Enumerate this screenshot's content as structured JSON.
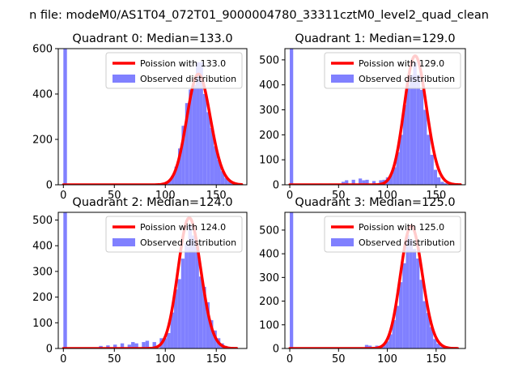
{
  "figure_title": "n file: modeM0/AS1T04_072T01_9000004780_33311cztM0_level2_quad_clean",
  "colors": {
    "histogram": "#8080ff",
    "poisson": "#ff0000",
    "axes": "#000000",
    "legend_border": "#cccccc"
  },
  "chart_data": [
    {
      "type": "bar",
      "title": "Quadrant 0: Median=133.0",
      "xlim": [
        -5,
        180
      ],
      "ylim": [
        0,
        600
      ],
      "xticks": [
        0,
        50,
        100,
        150
      ],
      "yticks": [
        0,
        200,
        400,
        600
      ],
      "bin_width": 3.5,
      "legend": {
        "placement": "top-right",
        "entries": [
          "Poission with 133.0",
          "Observed distribution"
        ]
      },
      "series": [
        {
          "name": "Observed distribution",
          "kind": "histogram",
          "bins": [
            {
              "x": 0,
              "y": 600
            },
            {
              "x": 80,
              "y": 4
            },
            {
              "x": 84,
              "y": 2
            },
            {
              "x": 91,
              "y": 2
            },
            {
              "x": 95,
              "y": 4
            },
            {
              "x": 98.5,
              "y": 8
            },
            {
              "x": 102,
              "y": 18
            },
            {
              "x": 105.5,
              "y": 40
            },
            {
              "x": 109,
              "y": 80
            },
            {
              "x": 112.5,
              "y": 160
            },
            {
              "x": 116,
              "y": 260
            },
            {
              "x": 119.5,
              "y": 360
            },
            {
              "x": 123,
              "y": 420
            },
            {
              "x": 126.5,
              "y": 440
            },
            {
              "x": 130,
              "y": 540
            },
            {
              "x": 133.5,
              "y": 540
            },
            {
              "x": 137,
              "y": 400
            },
            {
              "x": 140.5,
              "y": 320
            },
            {
              "x": 144,
              "y": 250
            },
            {
              "x": 147.5,
              "y": 170
            },
            {
              "x": 151,
              "y": 110
            },
            {
              "x": 154.5,
              "y": 60
            },
            {
              "x": 158,
              "y": 30
            },
            {
              "x": 161.5,
              "y": 14
            },
            {
              "x": 165,
              "y": 6
            },
            {
              "x": 168.5,
              "y": 2
            }
          ]
        },
        {
          "name": "Poission with 133.0",
          "kind": "poisson_curve",
          "lambda": 133.0,
          "scale": 14100,
          "x_range": [
            0,
            175
          ]
        }
      ]
    },
    {
      "type": "bar",
      "title": "Quadrant 1: Median=129.0",
      "xlim": [
        -5,
        180
      ],
      "ylim": [
        0,
        545
      ],
      "xticks": [
        0,
        50,
        100,
        150
      ],
      "yticks": [
        0,
        100,
        200,
        300,
        400,
        500
      ],
      "bin_width": 3.5,
      "legend": {
        "placement": "top-right",
        "entries": [
          "Poission with 129.0",
          "Observed distribution"
        ]
      },
      "series": [
        {
          "name": "Observed distribution",
          "kind": "histogram",
          "bins": [
            {
              "x": 0,
              "y": 545
            },
            {
              "x": 10,
              "y": 4
            },
            {
              "x": 20,
              "y": 3
            },
            {
              "x": 30,
              "y": 5
            },
            {
              "x": 40,
              "y": 5
            },
            {
              "x": 53,
              "y": 12
            },
            {
              "x": 56.5,
              "y": 18
            },
            {
              "x": 63.5,
              "y": 20
            },
            {
              "x": 70.5,
              "y": 25
            },
            {
              "x": 74,
              "y": 18
            },
            {
              "x": 77.5,
              "y": 20
            },
            {
              "x": 84.5,
              "y": 15
            },
            {
              "x": 91.5,
              "y": 18
            },
            {
              "x": 95,
              "y": 20
            },
            {
              "x": 98.5,
              "y": 30
            },
            {
              "x": 102,
              "y": 40
            },
            {
              "x": 105.5,
              "y": 70
            },
            {
              "x": 109,
              "y": 130
            },
            {
              "x": 112.5,
              "y": 200
            },
            {
              "x": 116,
              "y": 320
            },
            {
              "x": 119.5,
              "y": 400
            },
            {
              "x": 123,
              "y": 440
            },
            {
              "x": 126.5,
              "y": 490
            },
            {
              "x": 130,
              "y": 440
            },
            {
              "x": 133.5,
              "y": 380
            },
            {
              "x": 137,
              "y": 300
            },
            {
              "x": 140.5,
              "y": 200
            },
            {
              "x": 144,
              "y": 120
            },
            {
              "x": 147.5,
              "y": 60
            },
            {
              "x": 151,
              "y": 30
            },
            {
              "x": 154.5,
              "y": 12
            },
            {
              "x": 158,
              "y": 6
            }
          ]
        },
        {
          "name": "Poission with 129.0",
          "kind": "poisson_curve",
          "lambda": 129.0,
          "scale": 14700,
          "x_range": [
            0,
            175
          ]
        }
      ]
    },
    {
      "type": "bar",
      "title": "Quadrant 2: Median=124.0",
      "xlim": [
        -5,
        180
      ],
      "ylim": [
        0,
        530
      ],
      "xticks": [
        0,
        50,
        100,
        150
      ],
      "yticks": [
        0,
        100,
        200,
        300,
        400,
        500
      ],
      "bin_width": 3.5,
      "legend": {
        "placement": "top-right",
        "entries": [
          "Poission with 124.0",
          "Observed distribution"
        ]
      },
      "series": [
        {
          "name": "Observed distribution",
          "kind": "histogram",
          "bins": [
            {
              "x": 0,
              "y": 530
            },
            {
              "x": 35,
              "y": 10
            },
            {
              "x": 42,
              "y": 12
            },
            {
              "x": 49,
              "y": 15
            },
            {
              "x": 56,
              "y": 20
            },
            {
              "x": 63,
              "y": 15
            },
            {
              "x": 66.5,
              "y": 25
            },
            {
              "x": 70,
              "y": 20
            },
            {
              "x": 77,
              "y": 25
            },
            {
              "x": 80.5,
              "y": 30
            },
            {
              "x": 87.5,
              "y": 25
            },
            {
              "x": 94.5,
              "y": 40
            },
            {
              "x": 98,
              "y": 40
            },
            {
              "x": 101.5,
              "y": 60
            },
            {
              "x": 105,
              "y": 140
            },
            {
              "x": 108.5,
              "y": 230
            },
            {
              "x": 112,
              "y": 270
            },
            {
              "x": 115.5,
              "y": 350
            },
            {
              "x": 119,
              "y": 410
            },
            {
              "x": 122.5,
              "y": 480
            },
            {
              "x": 126,
              "y": 440
            },
            {
              "x": 129.5,
              "y": 400
            },
            {
              "x": 133,
              "y": 280
            },
            {
              "x": 136.5,
              "y": 240
            },
            {
              "x": 140,
              "y": 180
            },
            {
              "x": 143.5,
              "y": 110
            },
            {
              "x": 147,
              "y": 70
            },
            {
              "x": 150.5,
              "y": 40
            },
            {
              "x": 154,
              "y": 20
            },
            {
              "x": 157.5,
              "y": 10
            },
            {
              "x": 161,
              "y": 5
            }
          ]
        },
        {
          "name": "Poission with 124.0",
          "kind": "poisson_curve",
          "lambda": 124.0,
          "scale": 14200,
          "x_range": [
            0,
            170
          ]
        }
      ]
    },
    {
      "type": "bar",
      "title": "Quadrant 3: Median=125.0",
      "xlim": [
        -5,
        180
      ],
      "ylim": [
        0,
        575
      ],
      "xticks": [
        0,
        50,
        100,
        150
      ],
      "yticks": [
        0,
        100,
        200,
        300,
        400,
        500
      ],
      "bin_width": 3.5,
      "legend": {
        "placement": "top-right",
        "entries": [
          "Poission with 125.0",
          "Observed distribution"
        ]
      },
      "series": [
        {
          "name": "Observed distribution",
          "kind": "histogram",
          "bins": [
            {
              "x": 0,
              "y": 575
            },
            {
              "x": 60,
              "y": 3
            },
            {
              "x": 70,
              "y": 5
            },
            {
              "x": 77,
              "y": 15
            },
            {
              "x": 80.5,
              "y": 12
            },
            {
              "x": 87.5,
              "y": 12
            },
            {
              "x": 94.5,
              "y": 15
            },
            {
              "x": 98,
              "y": 30
            },
            {
              "x": 101.5,
              "y": 60
            },
            {
              "x": 105,
              "y": 120
            },
            {
              "x": 108.5,
              "y": 180
            },
            {
              "x": 112,
              "y": 280
            },
            {
              "x": 115.5,
              "y": 360
            },
            {
              "x": 119,
              "y": 480
            },
            {
              "x": 122.5,
              "y": 460
            },
            {
              "x": 126,
              "y": 420
            },
            {
              "x": 129.5,
              "y": 380
            },
            {
              "x": 133,
              "y": 290
            },
            {
              "x": 136.5,
              "y": 200
            },
            {
              "x": 140,
              "y": 150
            },
            {
              "x": 143.5,
              "y": 90
            },
            {
              "x": 147,
              "y": 40
            },
            {
              "x": 150.5,
              "y": 20
            },
            {
              "x": 154,
              "y": 8
            },
            {
              "x": 157.5,
              "y": 3
            }
          ]
        },
        {
          "name": "Poission with 125.0",
          "kind": "poisson_curve",
          "lambda": 125.0,
          "scale": 14500,
          "x_range": [
            0,
            172
          ]
        }
      ]
    }
  ]
}
